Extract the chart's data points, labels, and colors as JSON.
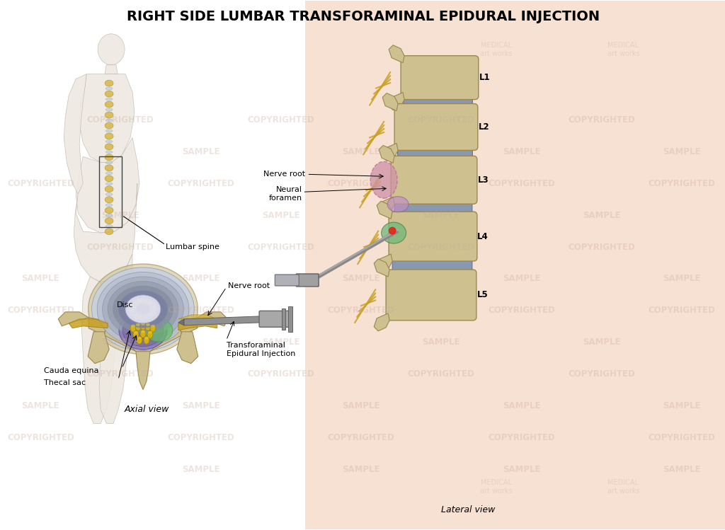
{
  "title": "RIGHT SIDE LUMBAR TRANSFORAMINAL EPIDURAL INJECTION",
  "title_fontsize": 14,
  "title_fontweight": "bold",
  "background_color": "#ffffff",
  "skin_bg_color": "#f2c9b0",
  "watermark_color": "#c8a898",
  "watermark_alpha": 0.3,
  "axial_label": "Axial view",
  "lateral_label": "Lateral view",
  "labels": {
    "lumbar_spine": "Lumbar spine",
    "disc": "Disc",
    "nerve_root_axial": "Nerve root",
    "cauda_equina": "Cauda equina",
    "thecal_sac": "Thecal sac",
    "transforaminal": "Transforaminal\nEpidural Injection",
    "nerve_root_lateral": "Nerve root",
    "neural_foramen": "Neural\nforamen"
  },
  "vertebra_color": "#cfc090",
  "vertebra_edge": "#9a8850",
  "disc_color_lateral": "#8090a8",
  "nerve_color": "#c8a030",
  "pink_highlight": "#d090a8",
  "green_highlight": "#70b878",
  "purple_canal": "#8878a8",
  "label_fontsize": 8,
  "spine_label_fontsize": 8.5,
  "wm_fs": 8.5
}
